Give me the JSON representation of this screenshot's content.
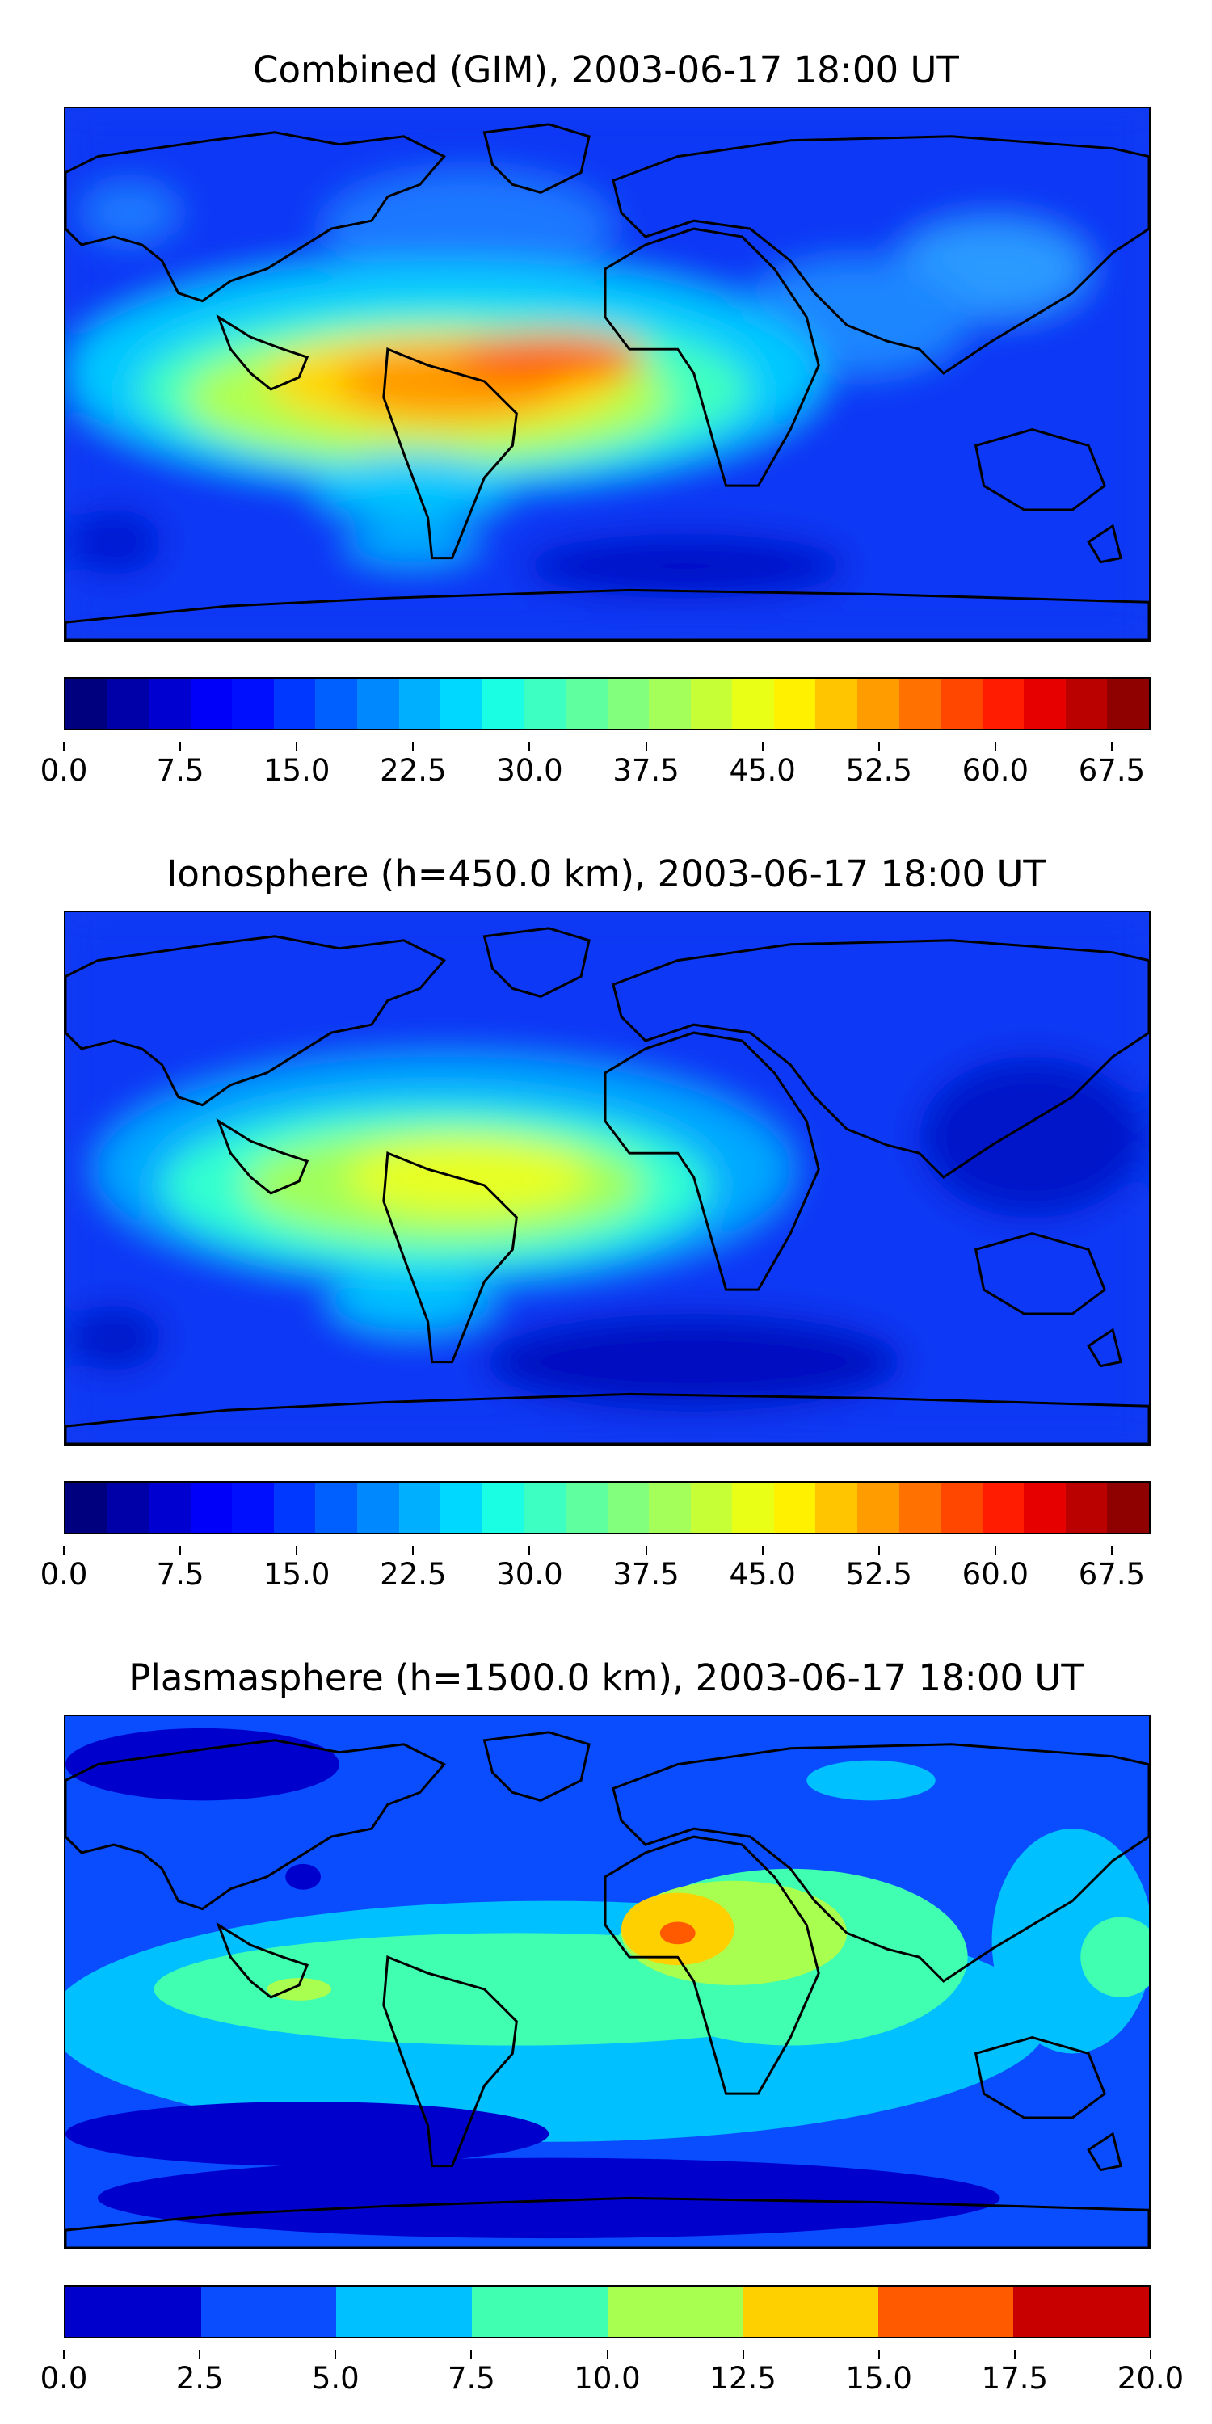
{
  "panels": [
    {
      "title": "Combined (GIM), 2003-06-17 18:00 UT",
      "colorbar": {
        "ticks": [
          "0.0",
          "7.5",
          "15.0",
          "22.5",
          "30.0",
          "37.5",
          "45.0",
          "52.5",
          "60.0",
          "67.5"
        ],
        "colors": [
          "#00007f",
          "#0000a8",
          "#0000d1",
          "#0000fa",
          "#0010ff",
          "#0038ff",
          "#0060ff",
          "#0088ff",
          "#00b0ff",
          "#00d8ff",
          "#1affe4",
          "#3dffc1",
          "#5fff9f",
          "#82ff7c",
          "#a4ff5a",
          "#c7ff37",
          "#e9ff15",
          "#fff100",
          "#ffc600",
          "#ff9c00",
          "#ff7100",
          "#ff4700",
          "#ff1c00",
          "#e60000",
          "#bb0000",
          "#8f0000"
        ]
      }
    },
    {
      "title": "Ionosphere  (h=450.0 km), 2003-06-17 18:00 UT",
      "colorbar": {
        "ticks": [
          "0.0",
          "7.5",
          "15.0",
          "22.5",
          "30.0",
          "37.5",
          "45.0",
          "52.5",
          "60.0",
          "67.5"
        ],
        "colors": [
          "#00007f",
          "#0000a8",
          "#0000d1",
          "#0000fa",
          "#0010ff",
          "#0038ff",
          "#0060ff",
          "#0088ff",
          "#00b0ff",
          "#00d8ff",
          "#1affe4",
          "#3dffc1",
          "#5fff9f",
          "#82ff7c",
          "#a4ff5a",
          "#c7ff37",
          "#e9ff15",
          "#fff100",
          "#ffc600",
          "#ff9c00",
          "#ff7100",
          "#ff4700",
          "#ff1c00",
          "#e60000",
          "#bb0000",
          "#8f0000"
        ]
      }
    },
    {
      "title": "Plasmasphere (h=1500.0 km), 2003-06-17 18:00 UT",
      "colorbar": {
        "ticks": [
          "0.0",
          "2.5",
          "5.0",
          "7.5",
          "10.0",
          "12.5",
          "15.0",
          "17.5",
          "20.0"
        ],
        "colors": [
          "#0000cc",
          "#0a4dff",
          "#00c0ff",
          "#40ffb0",
          "#a8ff50",
          "#ffd000",
          "#ff5a00",
          "#c80000"
        ]
      }
    }
  ]
}
